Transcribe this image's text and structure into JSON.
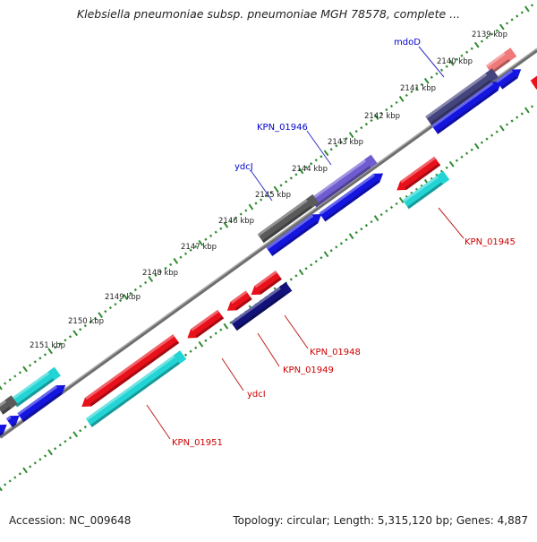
{
  "title": "Klebsiella pneumoniae subsp. pneumoniae MGH 78578, complete ...",
  "footer": {
    "accession": "Accession: NC_009648",
    "stats": "Topology: circular; Length: 5,315,120 bp; Genes: 4,887"
  },
  "ruler": {
    "unit": "kbp",
    "labels": [
      "2139 kbp",
      "2140 kbp",
      "2141 kbp",
      "2142 kbp",
      "2143 kbp",
      "2144 kbp",
      "2145 kbp",
      "2146 kbp",
      "2147 kbp",
      "2148 kbp",
      "2149 kbp",
      "2150 kbp",
      "2151 kbp"
    ]
  },
  "gene_labels": {
    "forward": [
      "mdoD",
      "KPN_01946",
      "ydcJ"
    ],
    "reverse": [
      "KPN_01945",
      "KPN_01948",
      "KPN_01949",
      "ydcI",
      "KPN_01951"
    ]
  },
  "colors": {
    "backbone": "#8c8c8c",
    "ruler_ticks": "#2e8b2e",
    "forward_label": "#0000cc",
    "reverse_label": "#cc0000",
    "gene_red": "#e8101a",
    "gene_pink": "#f07a7a",
    "gene_cyan": "#22d4d4",
    "gene_blue": "#1515e0",
    "gene_navy": "#12127a",
    "gene_slate": "#45457e",
    "gene_purple": "#6e5cd0",
    "gene_gray": "#5a5a5a"
  }
}
